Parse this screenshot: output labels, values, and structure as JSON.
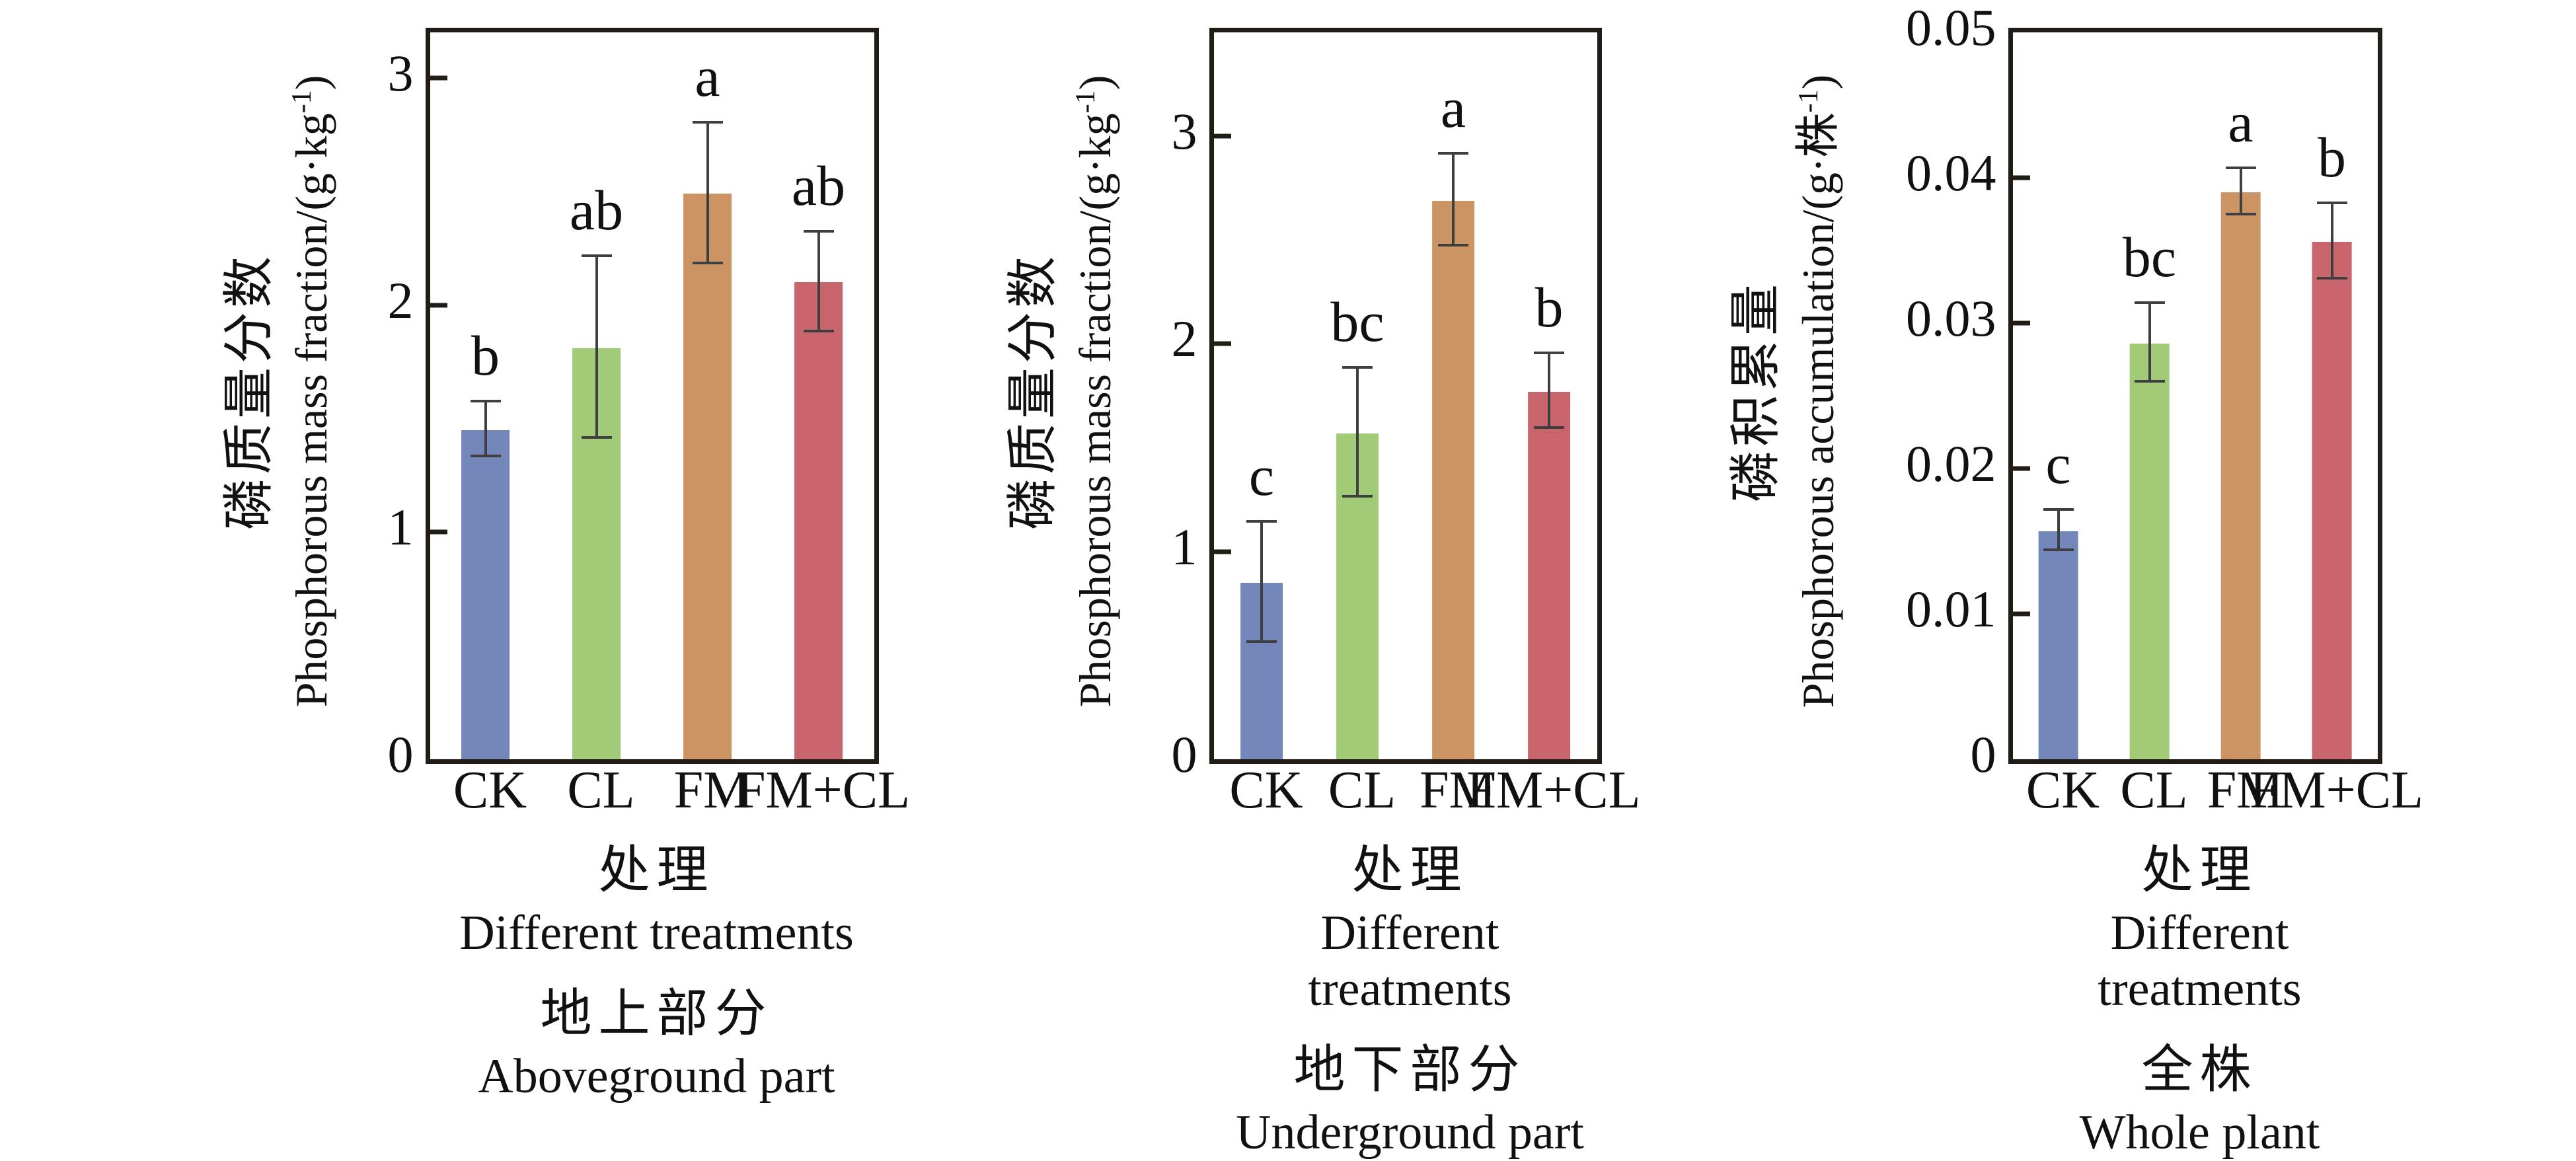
{
  "figure": {
    "background": "#ffffff",
    "axis_color": "#221c16",
    "error_bar_color": "#3f3f3f",
    "bar_colors": [
      "#7487ba",
      "#a2cb77",
      "#cd9463",
      "#c9656d"
    ]
  },
  "chart_data": [
    {
      "type": "bar",
      "panel_id": "aboveground",
      "categories": [
        "CK",
        "CL",
        "FM",
        "FM+CL"
      ],
      "values": [
        1.45,
        1.81,
        2.49,
        2.1
      ],
      "errors": [
        0.12,
        0.4,
        0.31,
        0.22
      ],
      "sig_letters": [
        "b",
        "ab",
        "a",
        "ab"
      ],
      "yticks": [
        0,
        1,
        2,
        3
      ],
      "ytick_labels": [
        "0",
        "1",
        "2",
        "3"
      ],
      "ylim": [
        0,
        3.2
      ],
      "grid": false,
      "ylabel_zh": "磷质量分数",
      "ylabel_en_pre": "Phosphorous mass fraction/(g·kg",
      "ylabel_en_sup": "-1",
      "ylabel_en_post": ")",
      "xlabel_zh": "处理",
      "xlabel_en": "Different treatments",
      "caption_zh": "地上部分",
      "caption_en": "Aboveground part"
    },
    {
      "type": "bar",
      "panel_id": "underground",
      "categories": [
        "CK",
        "CL",
        "FM",
        "FM+CL"
      ],
      "values": [
        0.85,
        1.57,
        2.69,
        1.77
      ],
      "errors": [
        0.29,
        0.31,
        0.22,
        0.18
      ],
      "sig_letters": [
        "c",
        "bc",
        "a",
        "b"
      ],
      "yticks": [
        0,
        1,
        2,
        3
      ],
      "ytick_labels": [
        "0",
        "1",
        "2",
        "3"
      ],
      "ylim": [
        0,
        3.5
      ],
      "grid": false,
      "ylabel_zh": "磷质量分数",
      "ylabel_en_pre": "Phosphorous mass fraction/(g·kg",
      "ylabel_en_sup": "-1",
      "ylabel_en_post": ")",
      "xlabel_zh": "处理",
      "xlabel_en": "Different treatments",
      "caption_zh": "地下部分",
      "caption_en": "Underground part"
    },
    {
      "type": "bar",
      "panel_id": "whole-plant",
      "categories": [
        "CK",
        "CL",
        "FM",
        "FM+CL"
      ],
      "values": [
        0.0157,
        0.0286,
        0.039,
        0.0356
      ],
      "errors": [
        0.0014,
        0.0027,
        0.0016,
        0.0026
      ],
      "sig_letters": [
        "c",
        "bc",
        "a",
        "b"
      ],
      "yticks": [
        0,
        0.01,
        0.02,
        0.03,
        0.04,
        0.05
      ],
      "ytick_labels": [
        "0",
        "0.01",
        "0.02",
        "0.03",
        "0.04",
        "0.05"
      ],
      "ylim": [
        0,
        0.05
      ],
      "grid": false,
      "ylabel_zh": "磷积累量",
      "ylabel_en_pre": "Phosphorous accumulation/(g·株",
      "ylabel_en_sup": "-1",
      "ylabel_en_post": ")",
      "xlabel_zh": "处理",
      "xlabel_en": "Different treatments",
      "caption_zh": "全株",
      "caption_en": "Whole plant"
    }
  ]
}
